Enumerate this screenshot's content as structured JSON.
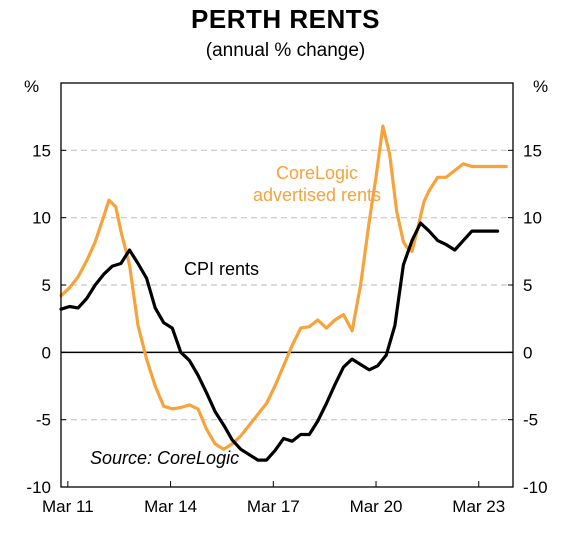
{
  "chart_data": {
    "type": "line",
    "title": "PERTH RENTS",
    "subtitle": "(annual % change)",
    "ylabel_left": "%",
    "ylabel_right": "%",
    "ylim": [
      -10,
      20
    ],
    "yticks": [
      -10,
      -5,
      0,
      5,
      10,
      15
    ],
    "xlim": [
      2011.0,
      2024.2
    ],
    "xticks": [
      {
        "value": 2011.2,
        "label": "Mar 11"
      },
      {
        "value": 2014.2,
        "label": "Mar 14"
      },
      {
        "value": 2017.2,
        "label": "Mar 17"
      },
      {
        "value": 2020.2,
        "label": "Mar 20"
      },
      {
        "value": 2023.2,
        "label": "Mar 23"
      }
    ],
    "grid": "horizontal dashed",
    "source": "Source: CoreLogic",
    "series": [
      {
        "name": "CoreLogic advertised rents",
        "label_lines": [
          "CoreLogic",
          "advertised rents"
        ],
        "color": "#F7A23B",
        "x": [
          2011.0,
          2011.25,
          2011.5,
          2011.75,
          2012.0,
          2012.25,
          2012.4,
          2012.6,
          2012.75,
          2013.0,
          2013.25,
          2013.5,
          2013.75,
          2014.0,
          2014.25,
          2014.5,
          2014.75,
          2015.0,
          2015.25,
          2015.5,
          2015.75,
          2016.0,
          2016.25,
          2016.5,
          2016.75,
          2017.0,
          2017.25,
          2017.5,
          2017.75,
          2018.0,
          2018.25,
          2018.5,
          2018.75,
          2019.0,
          2019.25,
          2019.5,
          2019.75,
          2020.0,
          2020.2,
          2020.4,
          2020.6,
          2020.8,
          2021.0,
          2021.1,
          2021.25,
          2021.4,
          2021.6,
          2021.75,
          2022.0,
          2022.25,
          2022.5,
          2022.75,
          2023.0,
          2023.25,
          2023.5,
          2023.75,
          2024.0
        ],
        "values": [
          4.2,
          4.8,
          5.6,
          6.8,
          8.2,
          10.1,
          11.3,
          10.8,
          9.0,
          6.5,
          2.0,
          -0.5,
          -2.5,
          -4.0,
          -4.2,
          -4.1,
          -3.9,
          -4.2,
          -5.7,
          -6.8,
          -7.2,
          -6.8,
          -6.2,
          -5.4,
          -4.6,
          -3.8,
          -2.5,
          -1.0,
          0.5,
          1.8,
          1.9,
          2.4,
          1.8,
          2.4,
          2.8,
          1.6,
          5.0,
          9.7,
          13.0,
          16.8,
          14.7,
          10.5,
          8.2,
          7.8,
          7.5,
          9.0,
          11.2,
          12.0,
          13.0,
          13.0,
          13.5,
          14.0,
          13.8,
          13.8,
          13.8,
          13.8,
          13.8
        ]
      },
      {
        "name": "CPI rents",
        "label_lines": [
          "CPI rents"
        ],
        "color": "#000000",
        "x": [
          2011.0,
          2011.25,
          2011.5,
          2011.75,
          2012.0,
          2012.25,
          2012.5,
          2012.75,
          2013.0,
          2013.25,
          2013.5,
          2013.75,
          2014.0,
          2014.25,
          2014.5,
          2014.75,
          2015.0,
          2015.25,
          2015.5,
          2015.75,
          2016.0,
          2016.25,
          2016.5,
          2016.75,
          2017.0,
          2017.25,
          2017.5,
          2017.75,
          2018.0,
          2018.25,
          2018.5,
          2018.75,
          2019.0,
          2019.25,
          2019.5,
          2019.75,
          2020.0,
          2020.25,
          2020.5,
          2020.75,
          2021.0,
          2021.25,
          2021.5,
          2021.75,
          2022.0,
          2022.25,
          2022.5,
          2022.75,
          2023.0,
          2023.25,
          2023.5,
          2023.75
        ],
        "values": [
          3.2,
          3.4,
          3.3,
          4.0,
          5.0,
          5.8,
          6.4,
          6.6,
          7.6,
          6.6,
          5.5,
          3.3,
          2.2,
          1.8,
          0.0,
          -0.6,
          -1.7,
          -3.0,
          -4.4,
          -5.4,
          -6.5,
          -7.2,
          -7.6,
          -8.0,
          -8.0,
          -7.3,
          -6.4,
          -6.6,
          -6.1,
          -6.1,
          -5.1,
          -3.8,
          -2.4,
          -1.1,
          -0.5,
          -0.9,
          -1.3,
          -1.0,
          -0.2,
          2.0,
          6.5,
          8.3,
          9.6,
          9.0,
          8.3,
          8.0,
          7.6,
          8.3,
          9.0,
          9.0,
          9.0,
          9.0
        ]
      }
    ]
  }
}
